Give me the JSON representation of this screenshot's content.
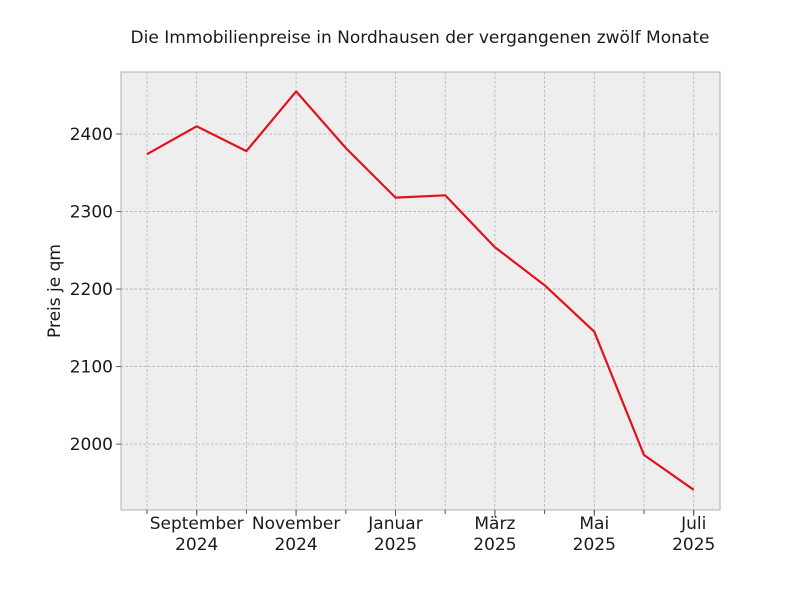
{
  "chart_data": {
    "type": "line",
    "title": "Die Immobilienpreise in Nordhausen der vergangenen zwölf Monate",
    "xlabel": "",
    "ylabel": "Preis je qm",
    "x": [
      "2024-08",
      "2024-09",
      "2024-10",
      "2024-11",
      "2024-12",
      "2025-01",
      "2025-02",
      "2025-03",
      "2025-04",
      "2025-05",
      "2025-06",
      "2025-07"
    ],
    "x_tick_labels": [
      {
        "month": "September",
        "year": "2024",
        "x": "2024-09"
      },
      {
        "month": "November",
        "year": "2024",
        "x": "2024-11"
      },
      {
        "month": "Januar",
        "year": "2025",
        "x": "2025-01"
      },
      {
        "month": "März",
        "year": "2025",
        "x": "2025-03"
      },
      {
        "month": "Mai",
        "year": "2025",
        "x": "2025-05"
      },
      {
        "month": "Juli",
        "year": "2025",
        "x": "2025-07"
      }
    ],
    "y_ticks": [
      2000,
      2100,
      2200,
      2300,
      2400
    ],
    "ylim": [
      1915,
      2480
    ],
    "grid": true,
    "series": [
      {
        "color": "#e3101e",
        "values": [
          2374,
          2410,
          2378,
          2455,
          2382,
          2318,
          2321,
          2254,
          2205,
          2145,
          1986,
          1941
        ]
      }
    ]
  }
}
